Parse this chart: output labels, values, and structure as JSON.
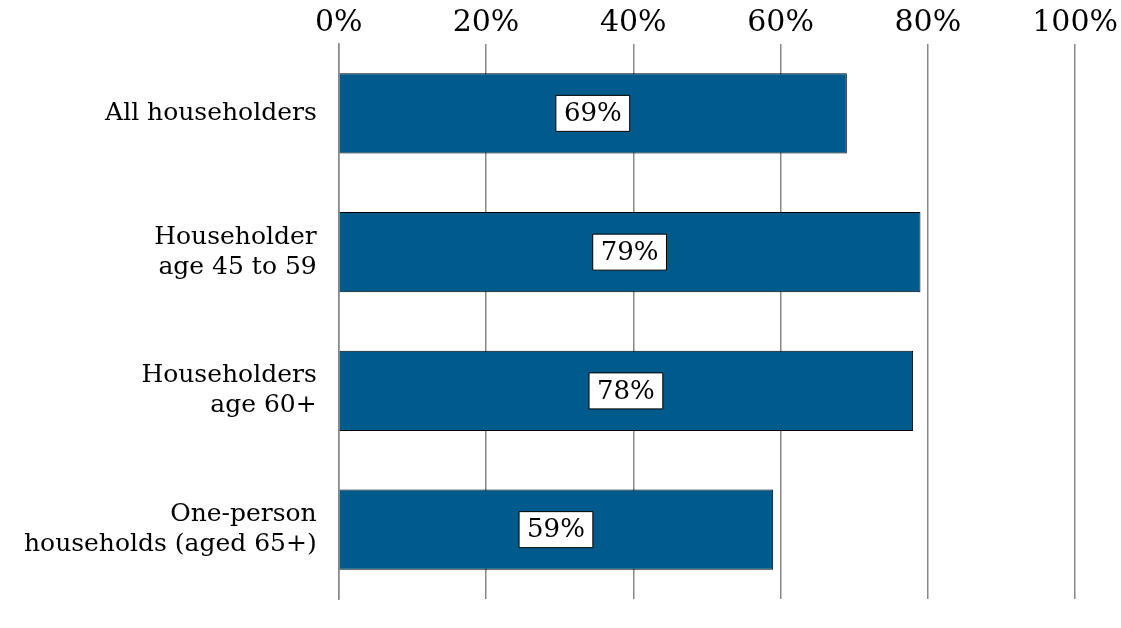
{
  "chart_data": {
    "type": "bar",
    "orientation": "horizontal",
    "categories": [
      "All householders",
      "Householder\nage 45 to 59",
      "Householders\nage 60+",
      "One-person\nhouseholds (aged 65+)"
    ],
    "values": [
      69,
      79,
      78,
      59
    ],
    "value_labels": [
      "69%",
      "79%",
      "78%",
      "59%"
    ],
    "color": "#005a8c",
    "xlim": [
      0,
      100
    ],
    "xticks": [
      {
        "value": 0,
        "label": "0%"
      },
      {
        "value": 20,
        "label": "20%"
      },
      {
        "value": 40,
        "label": "40%"
      },
      {
        "value": 60,
        "label": "60%"
      },
      {
        "value": 80,
        "label": "80%"
      },
      {
        "value": 100,
        "label": "100%"
      }
    ],
    "grid": "x",
    "legend": false
  }
}
